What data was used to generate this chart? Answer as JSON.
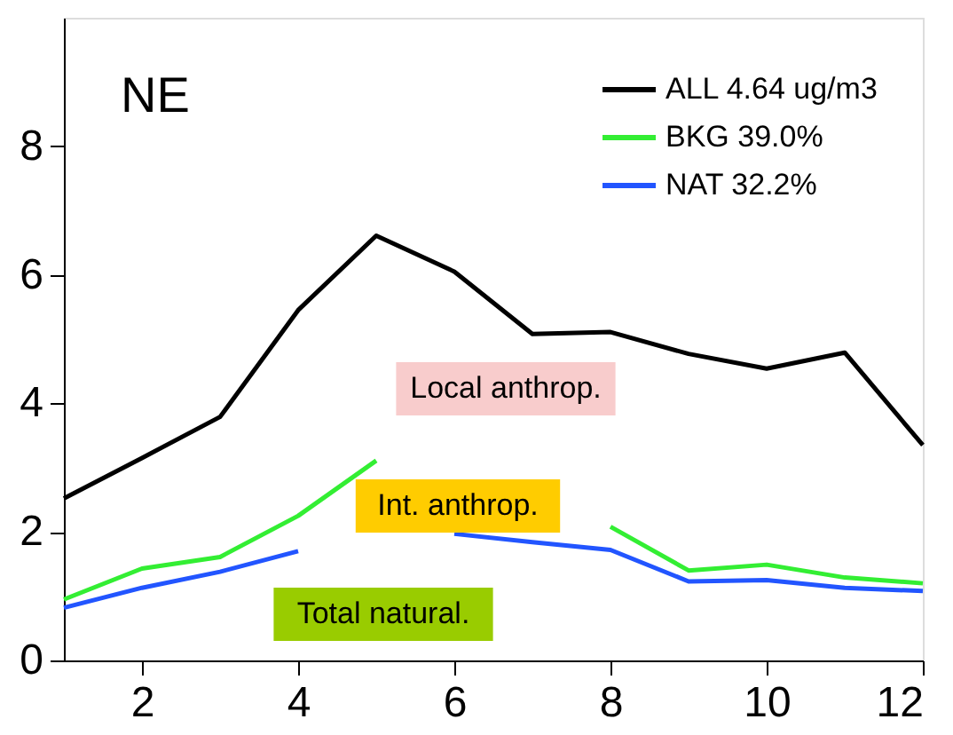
{
  "chart_data": {
    "type": "line",
    "title": "NE",
    "x": [
      1,
      2,
      3,
      4,
      5,
      6,
      7,
      8,
      9,
      10,
      11,
      12
    ],
    "series": [
      {
        "name": "ALL 4.64 ug/m3",
        "color": "#000000",
        "values": [
          2.52,
          3.15,
          3.79,
          5.45,
          6.61,
          6.05,
          5.08,
          5.11,
          4.77,
          4.54,
          4.79,
          3.35
        ]
      },
      {
        "name": "BKG 39.0%",
        "color": "#33ee33",
        "values": [
          0.95,
          1.43,
          1.61,
          2.25,
          3.11,
          null,
          null,
          2.08,
          1.4,
          1.49,
          1.29,
          1.2
        ]
      },
      {
        "name": "NAT 32.2%",
        "color": "#2255ff",
        "values": [
          0.82,
          1.13,
          1.38,
          1.7,
          null,
          1.97,
          1.84,
          1.72,
          1.23,
          1.25,
          1.13,
          1.08
        ]
      }
    ],
    "annotations": [
      "Local anthrop.",
      "Int. anthrop.",
      "Total natural."
    ],
    "xlim": [
      1,
      12
    ],
    "xticks": [
      2,
      4,
      6,
      8,
      10,
      12
    ],
    "ylim": [
      0,
      10
    ],
    "yticks": [
      0,
      2,
      4,
      6,
      8
    ],
    "grid": false,
    "legend": "top right",
    "marker": "none",
    "line_style": "solid"
  }
}
